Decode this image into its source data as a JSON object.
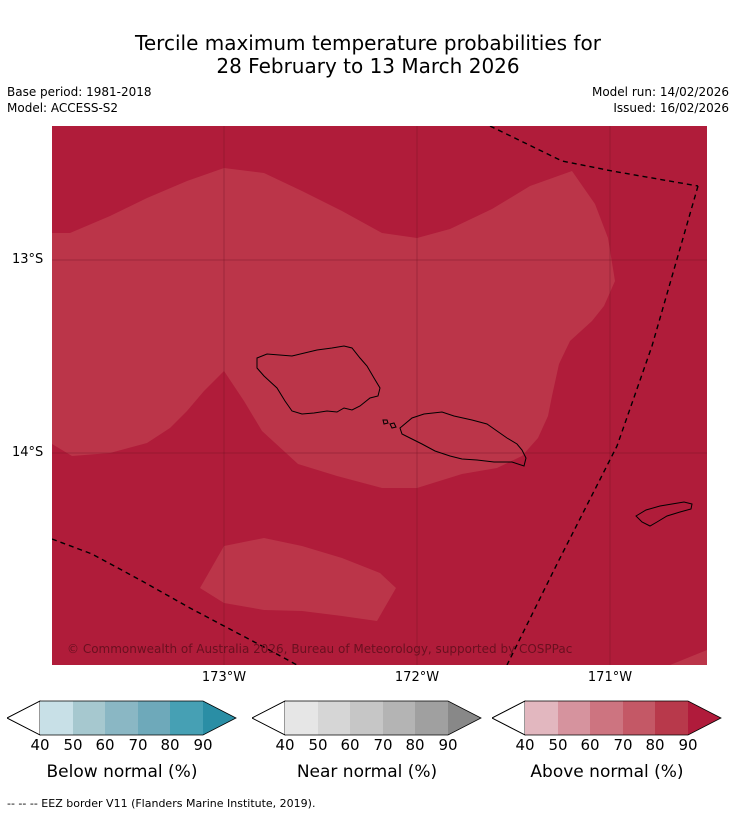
{
  "title_line1": "Tercile maximum temperature probabilities for",
  "title_line2": "28 February to 13 March 2026",
  "base_period": "Base period: 1981-2018",
  "model": "Model: ACCESS-S2",
  "model_run": "Model run: 14/02/2026",
  "issued": "Issued: 16/02/2026",
  "lat_labels": [
    "13°S",
    "14°S"
  ],
  "lon_labels": [
    "173°W",
    "172°W",
    "171°W"
  ],
  "copyright": "© Commonwealth of Australia 2026, Bureau of Meteorology, supported by COSPPac",
  "colorbars": [
    {
      "label": "Below normal (%)",
      "ticks": [
        "40",
        "50",
        "60",
        "70",
        "80",
        "90"
      ],
      "colors": [
        "#c8e0e7",
        "#a6c8cf",
        "#8ab7c4",
        "#6ea9ba",
        "#46a0b4",
        "#2a8ea5"
      ]
    },
    {
      "label": "Near normal (%)",
      "ticks": [
        "40",
        "50",
        "60",
        "70",
        "80",
        "90"
      ],
      "colors": [
        "#e6e6e6",
        "#d6d6d6",
        "#c6c6c6",
        "#b4b4b4",
        "#a0a0a0",
        "#888888"
      ]
    },
    {
      "label": "Above normal (%)",
      "ticks": [
        "40",
        "50",
        "60",
        "70",
        "80",
        "90"
      ],
      "colors": [
        "#e2b7bf",
        "#d6939e",
        "#cd7480",
        "#c45866",
        "#b8394b",
        "#b01b3b"
      ]
    }
  ],
  "map_colors": {
    "prob80": "#bb3549",
    "prob90": "#b01c3a"
  },
  "footnote": "-- -- -- EEZ border V11 (Flanders Marine Institute, 2019)."
}
